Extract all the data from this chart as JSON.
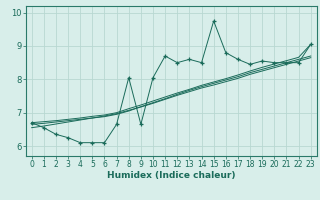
{
  "xlabel": "Humidex (Indice chaleur)",
  "bg_color": "#d8eeea",
  "grid_color": "#b8d8d2",
  "line_color": "#1a6b5a",
  "spine_color": "#2a7a6a",
  "xlim": [
    -0.5,
    23.5
  ],
  "ylim": [
    5.7,
    10.2
  ],
  "xticks": [
    0,
    1,
    2,
    3,
    4,
    5,
    6,
    7,
    8,
    9,
    10,
    11,
    12,
    13,
    14,
    15,
    16,
    17,
    18,
    19,
    20,
    21,
    22,
    23
  ],
  "yticks": [
    6,
    7,
    8,
    9,
    10
  ],
  "main_y": [
    6.7,
    6.55,
    6.35,
    6.25,
    6.1,
    6.1,
    6.1,
    6.65,
    8.05,
    6.65,
    8.05,
    8.7,
    8.5,
    8.6,
    8.5,
    9.75,
    8.8,
    8.6,
    8.45,
    8.55,
    8.5,
    8.5,
    8.5,
    9.05
  ],
  "trend1_y": [
    6.65,
    6.68,
    6.72,
    6.76,
    6.8,
    6.84,
    6.88,
    6.95,
    7.05,
    7.18,
    7.3,
    7.42,
    7.55,
    7.67,
    7.78,
    7.88,
    7.98,
    8.08,
    8.2,
    8.3,
    8.4,
    8.5,
    8.6,
    8.7
  ],
  "trend2_y": [
    6.55,
    6.6,
    6.66,
    6.72,
    6.78,
    6.84,
    6.9,
    6.97,
    7.07,
    7.17,
    7.28,
    7.4,
    7.52,
    7.63,
    7.74,
    7.83,
    7.93,
    8.03,
    8.15,
    8.25,
    8.35,
    8.45,
    8.55,
    8.65
  ],
  "trend3_y": [
    6.7,
    6.73,
    6.76,
    6.8,
    6.84,
    6.89,
    6.93,
    7.0,
    7.12,
    7.23,
    7.35,
    7.47,
    7.59,
    7.7,
    7.82,
    7.92,
    8.02,
    8.13,
    8.25,
    8.36,
    8.46,
    8.56,
    8.66,
    9.05
  ]
}
